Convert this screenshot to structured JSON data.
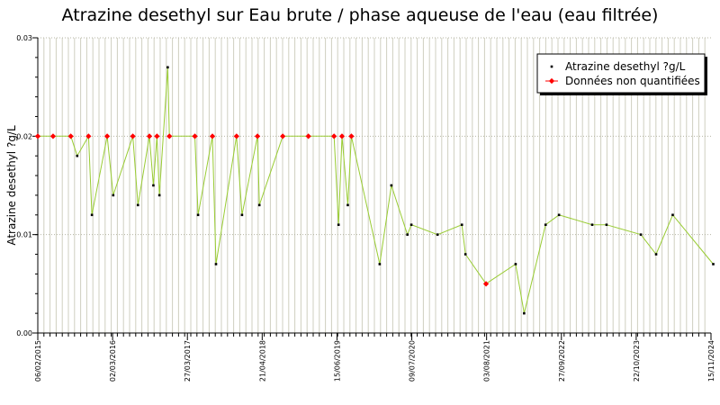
{
  "chart_data": {
    "type": "line",
    "title": "Atrazine desethyl sur Eau brute / phase aqueuse de l'eau (eau filtrée)",
    "ylabel": "Atrazine desethyl ?g/L",
    "xlabel": "",
    "ylim": [
      0,
      0.03
    ],
    "y_ticks": [
      "0.00",
      "0.01",
      "0.02",
      "0.03"
    ],
    "x_ticks": [
      "06/02/2015",
      "02/03/2016",
      "27/03/2017",
      "21/04/2018",
      "15/06/2019",
      "09/07/2020",
      "03/08/2021",
      "27/09/2022",
      "22/10/2023",
      "15/11/2024"
    ],
    "x_range": [
      "2015-02-06",
      "2024-11-15"
    ],
    "grid": "vertical",
    "legend_position": "top-right",
    "colors": {
      "line": "#99cc33",
      "quantified_marker": "#000000",
      "non_quantified_marker": "#ff0000",
      "grid": "#cfcfc0"
    },
    "series": [
      {
        "name": "Atrazine desethyl ?g/L",
        "points": [
          {
            "x": "2015-02-06",
            "y": 0.02,
            "nq": true
          },
          {
            "x": "2015-04-28",
            "y": 0.02,
            "nq": true
          },
          {
            "x": "2015-07-31",
            "y": 0.02,
            "nq": true
          },
          {
            "x": "2015-09-03",
            "y": 0.018,
            "nq": false
          },
          {
            "x": "2015-11-02",
            "y": 0.02,
            "nq": true
          },
          {
            "x": "2015-11-20",
            "y": 0.012,
            "nq": false
          },
          {
            "x": "2016-02-09",
            "y": 0.02,
            "nq": true
          },
          {
            "x": "2016-03-12",
            "y": 0.014,
            "nq": false
          },
          {
            "x": "2016-06-24",
            "y": 0.02,
            "nq": true
          },
          {
            "x": "2016-07-21",
            "y": 0.013,
            "nq": false
          },
          {
            "x": "2016-09-20",
            "y": 0.02,
            "nq": true
          },
          {
            "x": "2016-10-11",
            "y": 0.015,
            "nq": false
          },
          {
            "x": "2016-10-30",
            "y": 0.02,
            "nq": true
          },
          {
            "x": "2016-11-12",
            "y": 0.014,
            "nq": false
          },
          {
            "x": "2016-12-26",
            "y": 0.027,
            "nq": false
          },
          {
            "x": "2017-01-04",
            "y": 0.02,
            "nq": true
          },
          {
            "x": "2017-05-19",
            "y": 0.02,
            "nq": true
          },
          {
            "x": "2017-06-05",
            "y": 0.012,
            "nq": false
          },
          {
            "x": "2017-08-20",
            "y": 0.02,
            "nq": true
          },
          {
            "x": "2017-09-08",
            "y": 0.007,
            "nq": false
          },
          {
            "x": "2017-12-26",
            "y": 0.02,
            "nq": true
          },
          {
            "x": "2018-01-24",
            "y": 0.012,
            "nq": false
          },
          {
            "x": "2018-04-16",
            "y": 0.02,
            "nq": true
          },
          {
            "x": "2018-04-26",
            "y": 0.013,
            "nq": false
          },
          {
            "x": "2018-08-28",
            "y": 0.02,
            "nq": true
          },
          {
            "x": "2019-01-11",
            "y": 0.02,
            "nq": true
          },
          {
            "x": "2019-05-27",
            "y": 0.02,
            "nq": true
          },
          {
            "x": "2019-06-20",
            "y": 0.011,
            "nq": false
          },
          {
            "x": "2019-07-08",
            "y": 0.02,
            "nq": true
          },
          {
            "x": "2019-08-08",
            "y": 0.013,
            "nq": false
          },
          {
            "x": "2019-08-27",
            "y": 0.02,
            "nq": true
          },
          {
            "x": "2020-01-24",
            "y": 0.007,
            "nq": false
          },
          {
            "x": "2020-03-26",
            "y": 0.015,
            "nq": false
          },
          {
            "x": "2020-06-19",
            "y": 0.01,
            "nq": false
          },
          {
            "x": "2020-07-10",
            "y": 0.011,
            "nq": false
          },
          {
            "x": "2020-11-26",
            "y": 0.01,
            "nq": false
          },
          {
            "x": "2021-04-04",
            "y": 0.011,
            "nq": false
          },
          {
            "x": "2021-04-23",
            "y": 0.008,
            "nq": false
          },
          {
            "x": "2021-08-10",
            "y": 0.005,
            "nq": true
          },
          {
            "x": "2022-01-14",
            "y": 0.007,
            "nq": false
          },
          {
            "x": "2022-02-28",
            "y": 0.002,
            "nq": false
          },
          {
            "x": "2022-06-22",
            "y": 0.011,
            "nq": false
          },
          {
            "x": "2022-09-01",
            "y": 0.012,
            "nq": false
          },
          {
            "x": "2023-02-24",
            "y": 0.011,
            "nq": false
          },
          {
            "x": "2023-05-11",
            "y": 0.011,
            "nq": false
          },
          {
            "x": "2023-11-09",
            "y": 0.01,
            "nq": false
          },
          {
            "x": "2024-01-29",
            "y": 0.008,
            "nq": false
          },
          {
            "x": "2024-04-26",
            "y": 0.012,
            "nq": false
          },
          {
            "x": "2024-11-27",
            "y": 0.007,
            "nq": false
          }
        ]
      }
    ],
    "legend": [
      {
        "label": "Atrazine desethyl ?g/L",
        "marker": "quantified"
      },
      {
        "label": "Données non quantifiées",
        "marker": "non_quantified"
      }
    ]
  }
}
